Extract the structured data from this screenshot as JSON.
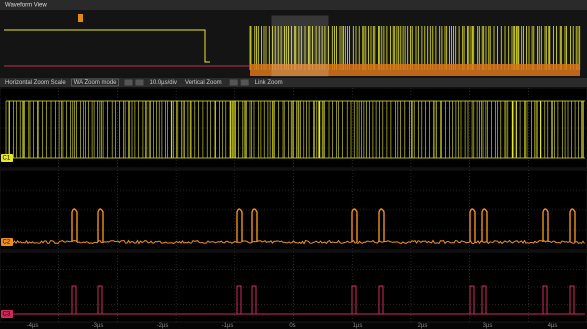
{
  "window": {
    "title": "Waveform View"
  },
  "toolbar": {
    "items": [
      "Horizontal Zoom Scale",
      "WA Zoom mode",
      "10.0µs/div",
      "Vertical Zoom",
      "Link Zoom"
    ]
  },
  "channels": [
    {
      "label": "C1"
    },
    {
      "label": "C2"
    },
    {
      "label": "C3"
    }
  ],
  "x_axis": {
    "labels": [
      "-4µs",
      "-3µs",
      "-2µs",
      "-1µs",
      "0s",
      "1µs",
      "2µs",
      "3µs",
      "4µs"
    ]
  }
}
